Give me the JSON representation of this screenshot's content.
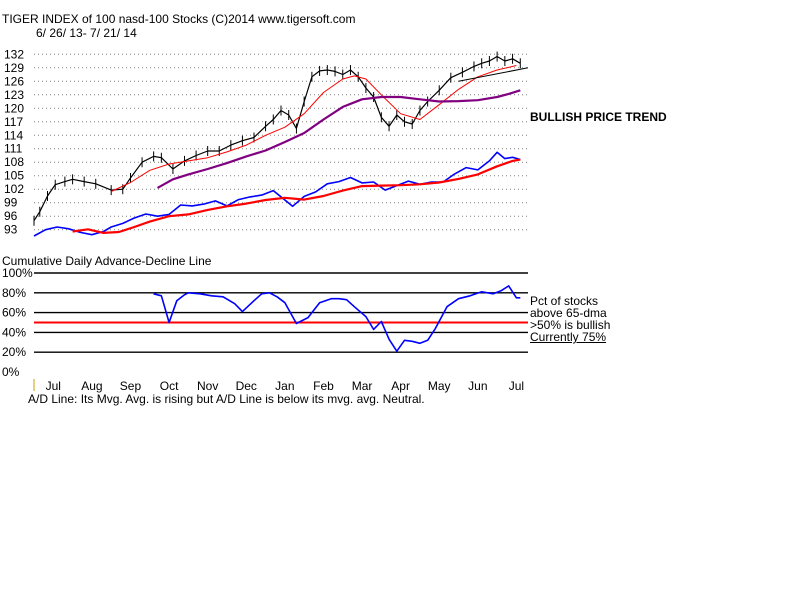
{
  "header": {
    "title": "TIGER INDEX of  100 nasd-100 Stocks  (C)2014  www.tigersoft.com",
    "date_range": "6/ 26/ 13- 7/ 21/ 14"
  },
  "annotations": {
    "trend": "BULLISH PRICE TREND",
    "ad_title": "Cumulative Daily Advance-Decline Line",
    "pct_line1": "Pct of stocks",
    "pct_line2": "above 65-dma",
    "pct_line3": ">50% is bullish",
    "pct_line4": "Currently  75%",
    "footer": "A/D Line: Its Mvg. Avg. is rising but A/D Line is below its mvg. avg. Neutral."
  },
  "colors": {
    "price": "#000000",
    "ma_short": "#ff0000",
    "ma_long": "#800080",
    "ad_line": "#0000ff",
    "ad_ma": "#ff0000",
    "pct_line": "#0000ff",
    "threshold": "#ff0000",
    "grid_dotted": "#808080",
    "trendline": "#000000"
  },
  "chart_data": [
    {
      "type": "line",
      "title": "TIGER INDEX of  100 nasd-100 Stocks",
      "months": [
        "Jul",
        "Aug",
        "Sep",
        "Oct",
        "Nov",
        "Dec",
        "Jan",
        "Feb",
        "Mar",
        "Apr",
        "May",
        "Jun",
        "Jul"
      ],
      "yticks": [
        132,
        129,
        126,
        123,
        120,
        117,
        114,
        111,
        108,
        105,
        102,
        99,
        96,
        93
      ],
      "ylim": [
        91.6,
        133.4
      ],
      "xlim": [
        0,
        12.8
      ],
      "grid": "dotted horizontal",
      "series": [
        {
          "role": "price",
          "x": [
            0,
            0.15,
            0.35,
            0.55,
            0.8,
            1.0,
            1.3,
            1.6,
            2.0,
            2.3,
            2.5,
            2.8,
            3.1,
            3.3,
            3.6,
            3.9,
            4.2,
            4.5,
            4.8,
            5.1,
            5.4,
            5.7,
            6.0,
            6.2,
            6.4,
            6.6,
            6.8,
            7.0,
            7.2,
            7.4,
            7.6,
            7.8,
            8.0,
            8.2,
            8.4,
            8.6,
            8.8,
            9.0,
            9.2,
            9.4,
            9.6,
            9.8,
            10.0,
            10.2,
            10.5,
            10.8,
            11.1,
            11.4,
            11.6,
            11.8,
            12.0,
            12.2,
            12.4,
            12.6
          ],
          "y": [
            95,
            97,
            100.5,
            103,
            103.7,
            104.2,
            103.7,
            103.2,
            101.8,
            102,
            104.5,
            108,
            109.3,
            109,
            106.5,
            108.3,
            109.5,
            110.5,
            110.5,
            111.8,
            112.8,
            113.5,
            116,
            117.5,
            119.5,
            118.5,
            115.5,
            121.5,
            127,
            128.3,
            128.5,
            128.2,
            127.5,
            128.5,
            127,
            124.5,
            122.5,
            118,
            116,
            118.5,
            117,
            116.5,
            119.5,
            121.5,
            124,
            126.8,
            128,
            129.3,
            130,
            130.5,
            131.5,
            130.5,
            131,
            130
          ]
        },
        {
          "role": "short moving average",
          "x": [
            2.0,
            2.5,
            3.0,
            3.5,
            4.0,
            4.5,
            5.0,
            5.5,
            6.0,
            6.5,
            7.0,
            7.5,
            8.0,
            8.3,
            8.6,
            9.0,
            9.5,
            10.0,
            10.5,
            11.0,
            11.5,
            12.0,
            12.5
          ],
          "y": [
            101.5,
            103.5,
            106.2,
            107.6,
            108.3,
            109,
            110.3,
            111.8,
            114,
            115.8,
            118.8,
            123.5,
            126.5,
            127.2,
            126.5,
            123,
            118.8,
            117.5,
            120.8,
            124.2,
            127,
            128.5,
            129.5
          ]
        },
        {
          "role": "long moving average",
          "x": [
            3.2,
            3.6,
            4.0,
            4.5,
            5.0,
            5.5,
            6.0,
            6.5,
            7.0,
            7.5,
            8.0,
            8.5,
            9.0,
            9.5,
            10.0,
            10.5,
            11.0,
            11.5,
            12.0,
            12.3,
            12.6
          ],
          "y": [
            102.3,
            104.2,
            105.3,
            106.5,
            107.8,
            109.3,
            110.6,
            112.5,
            114.5,
            117.5,
            120.3,
            122,
            122.5,
            122.5,
            122,
            121.5,
            121.6,
            121.8,
            122.5,
            123.2,
            124
          ]
        },
        {
          "role": "uptrend line",
          "x": [
            11.0,
            12.8
          ],
          "y": [
            126,
            129
          ]
        },
        {
          "role": "A/D line",
          "x": [
            0,
            0.3,
            0.6,
            0.9,
            1.2,
            1.5,
            1.8,
            2.0,
            2.3,
            2.6,
            2.9,
            3.2,
            3.5,
            3.8,
            4.1,
            4.4,
            4.7,
            5.0,
            5.3,
            5.6,
            5.9,
            6.2,
            6.5,
            6.7,
            7.0,
            7.3,
            7.6,
            7.9,
            8.2,
            8.5,
            8.8,
            9.1,
            9.4,
            9.7,
            10.0,
            10.3,
            10.6,
            10.9,
            11.2,
            11.5,
            11.8,
            12.0,
            12.2,
            12.4,
            12.6
          ],
          "y": [
            91.6,
            93,
            93.6,
            93.2,
            92.4,
            91.9,
            92.6,
            93.6,
            94.4,
            95.6,
            96.5,
            96,
            96.4,
            98.5,
            98.3,
            98.7,
            99.4,
            98.3,
            99.7,
            100.3,
            100.7,
            101.7,
            99.6,
            98.2,
            100.4,
            101.4,
            103.2,
            103.7,
            104.6,
            103.4,
            103.6,
            101.8,
            102.8,
            103.8,
            103.1,
            103.6,
            103.6,
            105.4,
            106.8,
            106.3,
            108.3,
            110.2,
            108.8,
            109.1,
            108.6
          ]
        },
        {
          "role": "A/D moving average",
          "x": [
            1.0,
            1.4,
            1.8,
            2.2,
            2.6,
            3.0,
            3.5,
            4.0,
            4.5,
            5.0,
            5.5,
            6.0,
            6.5,
            7.0,
            7.5,
            8.0,
            8.5,
            9.0,
            9.5,
            10.0,
            10.5,
            11.0,
            11.5,
            12.0,
            12.4,
            12.6
          ],
          "y": [
            92.6,
            93.1,
            92.3,
            92.5,
            93.6,
            94.8,
            96,
            96.4,
            97.4,
            98.2,
            98.8,
            99.6,
            100.1,
            99.7,
            100.5,
            101.7,
            102.7,
            102.8,
            102.9,
            103.1,
            103.5,
            104.3,
            105.3,
            107.1,
            108.3,
            108.6
          ]
        }
      ]
    },
    {
      "type": "line",
      "title": "Pct of stocks above 65-dma",
      "yticks": [
        "100%",
        "80%",
        "60%",
        "40%",
        "20%",
        "0%"
      ],
      "ylim": [
        0,
        100
      ],
      "xlim": [
        0,
        12.8
      ],
      "threshold": 50,
      "grid": "solid horizontal at 20% steps",
      "series": [
        {
          "role": "pct above 65-dma",
          "x": [
            3.1,
            3.3,
            3.5,
            3.7,
            3.9,
            4.0,
            4.3,
            4.6,
            4.9,
            5.2,
            5.4,
            5.7,
            5.9,
            6.1,
            6.3,
            6.5,
            6.8,
            7.1,
            7.4,
            7.7,
            7.9,
            8.1,
            8.3,
            8.6,
            8.8,
            9.0,
            9.2,
            9.4,
            9.6,
            9.8,
            10.0,
            10.2,
            10.4,
            10.7,
            11.0,
            11.3,
            11.6,
            11.9,
            12.1,
            12.3,
            12.5,
            12.6
          ],
          "y": [
            79,
            77,
            50,
            72,
            78,
            80,
            79,
            77,
            76,
            69,
            61,
            72,
            79,
            80,
            76,
            70,
            49,
            55,
            70,
            74,
            74,
            73,
            66,
            56,
            43,
            51,
            33,
            21,
            32,
            31,
            29,
            32,
            44,
            66,
            74,
            77,
            81,
            79,
            82,
            87,
            75,
            75
          ]
        }
      ]
    }
  ]
}
